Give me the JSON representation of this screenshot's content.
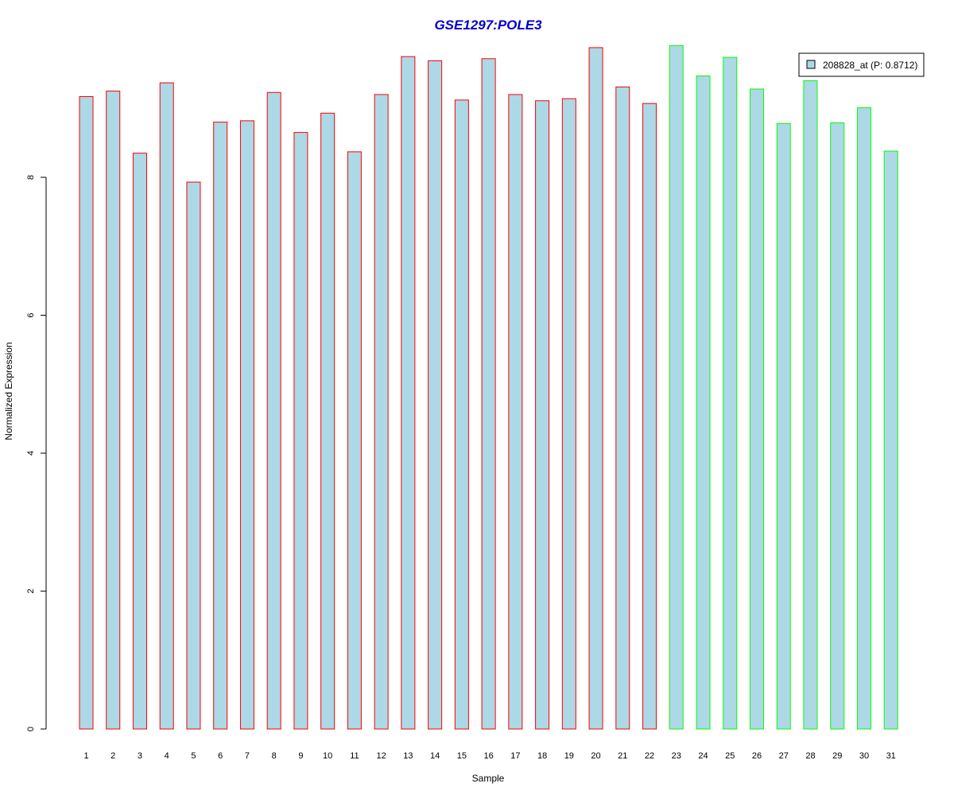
{
  "chart_data": {
    "type": "bar",
    "title": "GSE1297:POLE3",
    "xlabel": "Sample",
    "ylabel": "Normalized Expression",
    "ylim": [
      0,
      10
    ],
    "yticks": [
      0,
      2,
      4,
      6,
      8
    ],
    "categories": [
      "1",
      "2",
      "3",
      "4",
      "5",
      "6",
      "7",
      "8",
      "9",
      "10",
      "11",
      "12",
      "13",
      "14",
      "15",
      "16",
      "17",
      "18",
      "19",
      "20",
      "21",
      "22",
      "23",
      "24",
      "25",
      "26",
      "27",
      "28",
      "29",
      "30",
      "31"
    ],
    "series": [
      {
        "name": "208828_at (P: 0.8712)",
        "values": [
          9.17,
          9.25,
          8.35,
          9.37,
          7.93,
          8.8,
          8.82,
          9.23,
          8.65,
          8.93,
          8.37,
          9.2,
          9.75,
          9.69,
          9.12,
          9.72,
          9.2,
          9.11,
          9.14,
          9.88,
          9.31,
          9.07,
          9.91,
          9.47,
          9.74,
          9.28,
          8.78,
          9.4,
          8.79,
          9.01,
          8.38
        ]
      }
    ],
    "groups": [
      {
        "samples": "1-22",
        "border_color": "#ff0000"
      },
      {
        "samples": "23-31",
        "border_color": "#00ff00"
      }
    ],
    "bar_fill": "#add8e6",
    "grid": false,
    "legend_position": "top-right"
  },
  "colors": {
    "title": "#0000cc",
    "bar_fill": "#add8e6",
    "group1_border": "#ff0000",
    "group2_border": "#00ff00",
    "axis": "#000000"
  }
}
